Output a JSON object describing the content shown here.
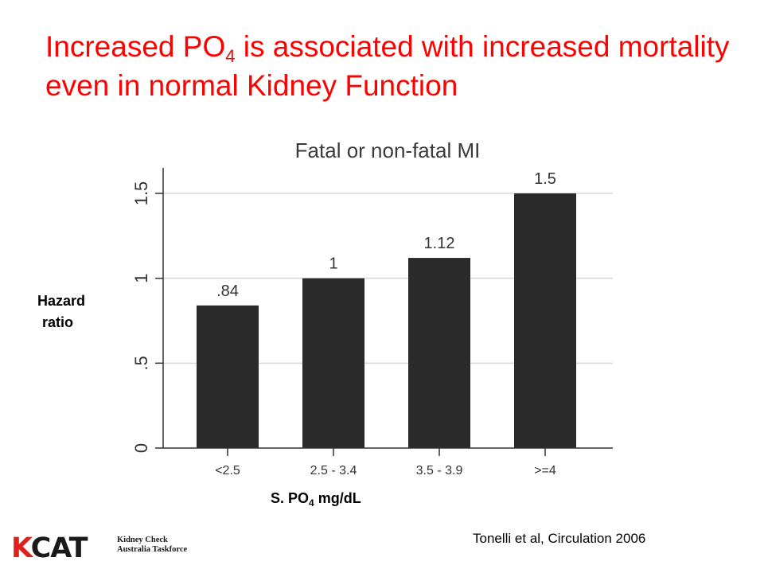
{
  "slide": {
    "title_part1": "Increased PO",
    "title_sub": "4",
    "title_part2": " is associated with increased mortality even in normal Kidney Function",
    "citation": "Tonelli et al, Circulation 2006",
    "title_color": "#ff0000"
  },
  "logo": {
    "mark_k": "K",
    "mark_rest": "CAT",
    "line1": "Kidney Check",
    "line2": "Australia Taskforce",
    "accent_color": "#e0201c"
  },
  "chart_data": {
    "type": "bar",
    "title": "Fatal or non-fatal MI",
    "categories": [
      "<2.5",
      "2.5 - 3.4",
      "3.5 - 3.9",
      ">=4"
    ],
    "values": [
      0.84,
      1,
      1.12,
      1.5
    ],
    "data_labels": [
      ".84",
      "1",
      "1.12",
      "1.5"
    ],
    "ylabel_line1": "Hazard",
    "ylabel_line2": "ratio",
    "xlabel_part1": "S. PO",
    "xlabel_sub": "4",
    "xlabel_part2": " mg/dL",
    "ylim": [
      0,
      1.65
    ],
    "yticks": [
      0,
      0.5,
      1,
      1.5
    ],
    "ytick_labels": [
      "0",
      ".5",
      "1",
      "1.5"
    ],
    "grid": true,
    "bar_color": "#2a2a2a"
  }
}
